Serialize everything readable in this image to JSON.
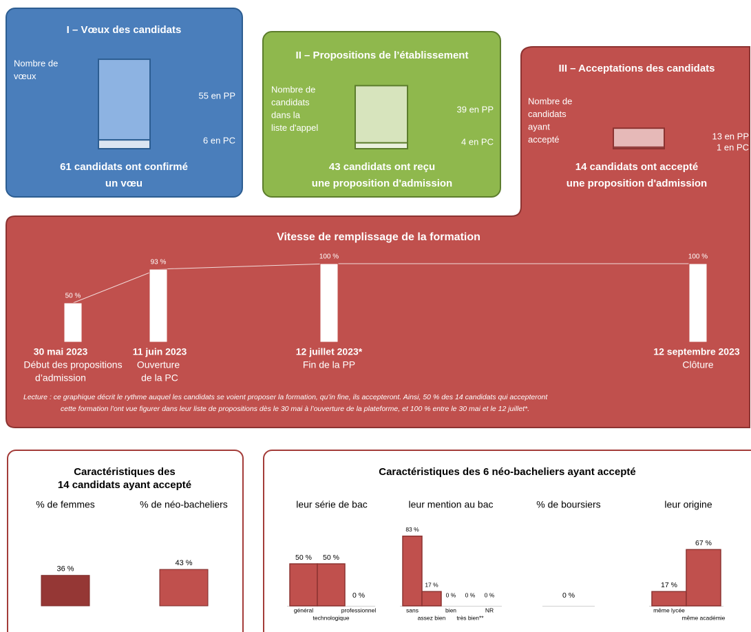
{
  "panels": [
    {
      "title": "I – Vœux des candidats",
      "label": [
        "Nombre de",
        "vœux"
      ],
      "pp": 55,
      "pc": 6,
      "pp_label": "55 en PP",
      "pc_label": "6 en PC",
      "summary": [
        "61 candidats ont confirmé",
        "un vœu"
      ],
      "color": "#4a7ebb",
      "border": "#2c5d91",
      "bar_color": "#8db3e2",
      "pc_color": "#dbe5f1"
    },
    {
      "title": "II – Propositions de l’établissement",
      "label": [
        "Nombre de",
        "candidats",
        "dans la",
        "liste d'appel"
      ],
      "pp": 39,
      "pc": 4,
      "pp_label": "39 en PP",
      "pc_label": "4 en PC",
      "summary": [
        "43 candidats ont reçu",
        "une proposition d'admission"
      ],
      "color": "#8fb84d",
      "border": "#5c7d2c",
      "bar_color": "#d7e4bd",
      "pc_color": "#ebf1de"
    },
    {
      "title": "III – Acceptations des candidats",
      "label": [
        "Nombre de",
        "candidats",
        "ayant",
        "accepté"
      ],
      "pp": 13,
      "pc": 1,
      "pp_label": "13 en PP",
      "pc_label": "1 en PC",
      "summary": [
        "14 candidats ont accepté",
        "une proposition d'admission"
      ],
      "color": "#c0504d",
      "border": "#8c3331",
      "bar_color": "#e6b9b8",
      "pc_color": "#f2dcdb"
    }
  ],
  "filling": {
    "title": "Vitesse de remplissage de la formation",
    "values": [
      50,
      93,
      100,
      100
    ],
    "value_labels": [
      "50 %",
      "93 %",
      "100 %",
      "100 %"
    ],
    "dates": [
      "30 mai 2023",
      "11 juin 2023",
      "12 juillet 2023*",
      "12 septembre 2023"
    ],
    "descriptions": [
      [
        "Début des propositions",
        "d’admission"
      ],
      [
        "Ouverture",
        "de la PC"
      ],
      [
        "Fin de la PP"
      ],
      [
        "Clôture"
      ]
    ],
    "note": [
      "Lecture : ce graphique décrit le rythme auquel les candidats se voient proposer la formation, qu’in fine, ils accepteront.  Ainsi, 50 % des 14 candidats qui accepteront",
      "cette formation l’ont vue figurer dans leur liste de propositions dès le 30 mai à l’ouverture de la plateforme, et 100 % entre le 30 mai et le 12 juillet*."
    ],
    "color": "#c0504d"
  },
  "accepted": {
    "title": [
      "Caractéristiques des",
      "14 candidats ayant accepté"
    ],
    "items": [
      {
        "label": "% de femmes",
        "value": 36,
        "value_label": "36 %",
        "color": "#953735"
      },
      {
        "label": "% de néo-bacheliers",
        "value": 43,
        "value_label": "43 %",
        "color": "#c0504d"
      }
    ]
  },
  "neo": {
    "title": "Caractéristiques des 6 néo-bacheliers ayant accepté",
    "color": "#c0504d",
    "groups": [
      {
        "label": "leur série de bac",
        "categories": [
          "général",
          "technologique",
          "professionnel"
        ],
        "values": [
          50,
          50,
          0
        ],
        "value_labels": [
          "50 %",
          "50 %",
          "0 %"
        ]
      },
      {
        "label": "leur mention au bac",
        "categories": [
          "sans",
          "assez bien",
          "bien",
          "très bien**",
          "NR"
        ],
        "values": [
          83,
          17,
          0,
          0,
          0
        ],
        "value_labels": [
          "83 %",
          "17 %",
          "0 %",
          "0 %",
          "0 %"
        ]
      },
      {
        "label": "% de boursiers",
        "values": [
          0
        ],
        "value_labels": [
          "0 %"
        ]
      },
      {
        "label": "leur origine",
        "categories": [
          "même lycée",
          "même académie"
        ],
        "values": [
          17,
          67
        ],
        "value_labels": [
          "17 %",
          "67 %"
        ]
      }
    ]
  }
}
